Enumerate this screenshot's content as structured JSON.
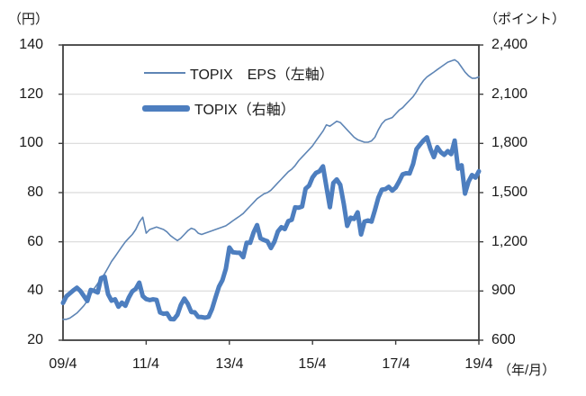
{
  "chart_data": {
    "type": "line",
    "title": "",
    "left_axis": {
      "unit_label": "（円）",
      "min": 20,
      "max": 140,
      "step": 20,
      "tick_labels": [
        "20",
        "40",
        "60",
        "80",
        "100",
        "120",
        "140"
      ]
    },
    "right_axis": {
      "unit_label": "（ポイント）",
      "min": 600,
      "max": 2400,
      "step": 300,
      "tick_labels": [
        "600",
        "900",
        "1,200",
        "1,500",
        "1,800",
        "2,100",
        "2,400"
      ]
    },
    "x_axis": {
      "unit_label": "（年/月）",
      "start": "2009/4",
      "end": "2019/4",
      "interval": "monthly",
      "tick_labels": [
        {
          "index": 0,
          "label": "09/4"
        },
        {
          "index": 24,
          "label": "11/4"
        },
        {
          "index": 48,
          "label": "13/4"
        },
        {
          "index": 72,
          "label": "15/4"
        },
        {
          "index": 96,
          "label": "17/4"
        },
        {
          "index": 120,
          "label": "19/4"
        }
      ]
    },
    "grid": "horizontal",
    "legend_position": "inside-top-left",
    "colors": {
      "eps_line": "#5e85b5",
      "topix_line": "#4d7ebf",
      "border": "#3f3f3f",
      "gridline": "#d9d9d9"
    },
    "series": [
      {
        "name": "TOPIX　EPS（左軸）",
        "axis": "left",
        "style": "thin",
        "values": [
          28.5,
          28.5,
          29,
          30,
          31,
          32.5,
          34,
          36,
          38.5,
          41,
          43,
          45,
          47,
          49.5,
          52,
          54,
          56,
          58,
          60,
          61.5,
          63,
          65,
          68,
          70,
          63.5,
          65,
          65.5,
          66,
          65.5,
          65,
          64,
          62.5,
          61.5,
          60.5,
          61.5,
          63,
          64.5,
          65.5,
          65,
          63.5,
          63,
          63.5,
          64,
          64.5,
          65,
          65.5,
          66,
          66.5,
          67.5,
          68.5,
          69.5,
          70.5,
          71.5,
          73,
          74.5,
          76,
          77.5,
          78.5,
          79.5,
          80,
          81,
          82.5,
          84,
          85.5,
          87,
          88.5,
          89.5,
          91,
          93,
          94.5,
          96,
          97.5,
          99,
          101,
          103,
          105,
          107.5,
          107,
          108,
          109,
          108.5,
          107,
          105.5,
          104,
          102.5,
          101.5,
          101,
          100.5,
          100.5,
          101,
          102.5,
          105.5,
          108,
          109.5,
          110,
          110.5,
          112,
          113.5,
          114.5,
          116,
          117.5,
          119,
          121,
          123.5,
          125.5,
          127,
          128,
          129,
          130,
          131,
          132,
          133,
          133.5,
          134,
          133,
          131,
          129,
          127.5,
          126.5,
          126.5,
          127
        ]
      },
      {
        "name": "TOPIX（右軸）",
        "axis": "right",
        "style": "thick",
        "values": [
          827,
          868,
          886,
          904,
          920,
          900,
          870,
          839,
          907,
          901,
          891,
          978,
          987,
          880,
          841,
          849,
          804,
          829,
          810,
          860,
          898,
          913,
          951,
          869,
          851,
          845,
          849,
          846,
          769,
          761,
          764,
          729,
          728,
          755,
          815,
          854,
          822,
          772,
          770,
          742,
          741,
          737,
          742,
          791,
          860,
          927,
          966,
          1035,
          1165,
          1136,
          1134,
          1133,
          1106,
          1194,
          1194,
          1258,
          1302,
          1221,
          1211,
          1203,
          1162,
          1201,
          1263,
          1289,
          1278,
          1326,
          1334,
          1410,
          1408,
          1415,
          1524,
          1543,
          1593,
          1620,
          1630,
          1660,
          1537,
          1411,
          1558,
          1580,
          1547,
          1432,
          1297,
          1347,
          1340,
          1380,
          1245,
          1323,
          1330,
          1323,
          1393,
          1469,
          1518,
          1521,
          1535,
          1512,
          1531,
          1568,
          1611,
          1618,
          1617,
          1674,
          1765,
          1792,
          1818,
          1837,
          1768,
          1716,
          1777,
          1747,
          1730,
          1753,
          1735,
          1817,
          1646,
          1667,
          1494,
          1567,
          1607,
          1591,
          1630
        ]
      }
    ]
  }
}
